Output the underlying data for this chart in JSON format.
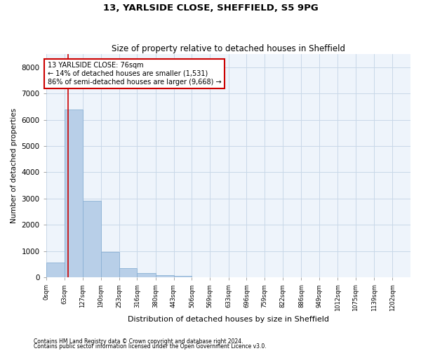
{
  "title1": "13, YARLSIDE CLOSE, SHEFFIELD, S5 9PG",
  "title2": "Size of property relative to detached houses in Sheffield",
  "xlabel": "Distribution of detached houses by size in Sheffield",
  "ylabel": "Number of detached properties",
  "annotation_line1": "13 YARLSIDE CLOSE: 76sqm",
  "annotation_line2": "← 14% of detached houses are smaller (1,531)",
  "annotation_line3": "86% of semi-detached houses are larger (9,668) →",
  "vline_x": 76,
  "bar_edges": [
    0,
    63,
    127,
    190,
    253,
    316,
    380,
    443,
    506,
    569,
    633,
    696,
    759,
    822,
    886,
    949,
    1012,
    1075,
    1139,
    1202,
    1265
  ],
  "bar_heights": [
    570,
    6400,
    2920,
    960,
    360,
    150,
    75,
    50,
    0,
    0,
    0,
    0,
    0,
    0,
    0,
    0,
    0,
    0,
    0,
    0
  ],
  "bar_color": "#b8cfe8",
  "bar_edge_color": "#8ab0d4",
  "vline_color": "#cc0000",
  "grid_color": "#c8d8e8",
  "bg_color": "#eef4fb",
  "annotation_box_color": "#cc0000",
  "ylim": [
    0,
    8500
  ],
  "yticks": [
    0,
    1000,
    2000,
    3000,
    4000,
    5000,
    6000,
    7000,
    8000
  ],
  "footer1": "Contains HM Land Registry data © Crown copyright and database right 2024.",
  "footer2": "Contains public sector information licensed under the Open Government Licence v3.0."
}
